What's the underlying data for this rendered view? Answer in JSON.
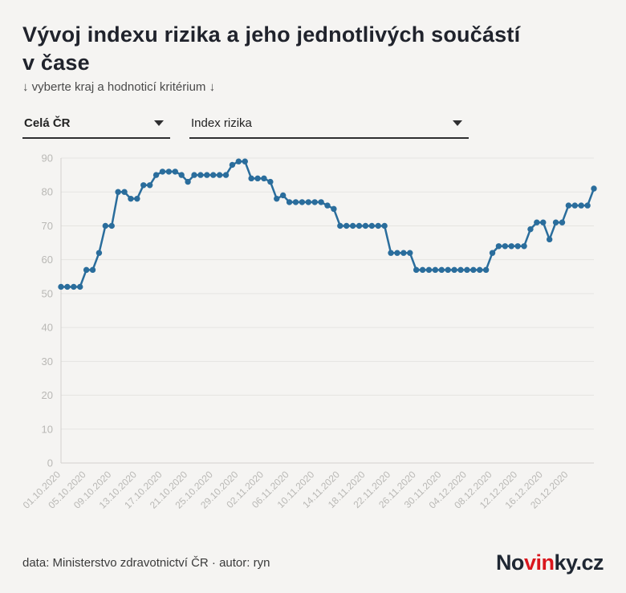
{
  "page": {
    "title_line1": "Vývoj indexu rizika a jeho jednotlivých součástí",
    "title_line2": "v čase",
    "subtitle": "↓ vyberte kraj a hodnoticí kritérium ↓"
  },
  "filters": {
    "region": {
      "value": "Celá ČR"
    },
    "criterion": {
      "value": "Index rizika"
    }
  },
  "chart_data": {
    "type": "line",
    "series_name": "Index rizika",
    "x": [
      "01.10.2020",
      "02.10.2020",
      "03.10.2020",
      "04.10.2020",
      "05.10.2020",
      "06.10.2020",
      "07.10.2020",
      "08.10.2020",
      "09.10.2020",
      "10.10.2020",
      "11.10.2020",
      "12.10.2020",
      "13.10.2020",
      "14.10.2020",
      "15.10.2020",
      "16.10.2020",
      "17.10.2020",
      "18.10.2020",
      "19.10.2020",
      "20.10.2020",
      "21.10.2020",
      "22.10.2020",
      "23.10.2020",
      "24.10.2020",
      "25.10.2020",
      "26.10.2020",
      "27.10.2020",
      "28.10.2020",
      "29.10.2020",
      "30.10.2020",
      "31.10.2020",
      "01.11.2020",
      "02.11.2020",
      "03.11.2020",
      "04.11.2020",
      "05.11.2020",
      "06.11.2020",
      "07.11.2020",
      "08.11.2020",
      "09.11.2020",
      "10.11.2020",
      "11.11.2020",
      "12.11.2020",
      "13.11.2020",
      "14.11.2020",
      "15.11.2020",
      "16.11.2020",
      "17.11.2020",
      "18.11.2020",
      "19.11.2020",
      "20.11.2020",
      "21.11.2020",
      "22.11.2020",
      "23.11.2020",
      "24.11.2020",
      "25.11.2020",
      "26.11.2020",
      "27.11.2020",
      "28.11.2020",
      "29.11.2020",
      "30.11.2020",
      "01.12.2020",
      "02.12.2020",
      "03.12.2020",
      "04.12.2020",
      "05.12.2020",
      "06.12.2020",
      "07.12.2020",
      "08.12.2020",
      "09.12.2020",
      "10.12.2020",
      "11.12.2020",
      "12.12.2020",
      "13.12.2020",
      "14.12.2020",
      "15.12.2020",
      "16.12.2020",
      "17.12.2020",
      "18.12.2020",
      "19.12.2020",
      "20.12.2020",
      "21.12.2020",
      "22.12.2020",
      "23.12.2020",
      "24.12.2020"
    ],
    "values": [
      52,
      52,
      52,
      52,
      57,
      57,
      62,
      70,
      70,
      80,
      80,
      78,
      78,
      82,
      82,
      85,
      86,
      86,
      86,
      85,
      83,
      85,
      85,
      85,
      85,
      85,
      85,
      88,
      89,
      89,
      84,
      84,
      84,
      83,
      78,
      79,
      77,
      77,
      77,
      77,
      77,
      77,
      76,
      75,
      70,
      70,
      70,
      70,
      70,
      70,
      70,
      70,
      62,
      62,
      62,
      62,
      57,
      57,
      57,
      57,
      57,
      57,
      57,
      57,
      57,
      57,
      57,
      57,
      62,
      64,
      64,
      64,
      64,
      64,
      69,
      71,
      71,
      66,
      71,
      71,
      76,
      76,
      76,
      76,
      81
    ],
    "x_tick_labels": [
      "01.10.2020",
      "05.10.2020",
      "09.10.2020",
      "13.10.2020",
      "17.10.2020",
      "21.10.2020",
      "25.10.2020",
      "29.10.2020",
      "02.11.2020",
      "06.11.2020",
      "10.11.2020",
      "14.11.2020",
      "18.11.2020",
      "22.11.2020",
      "26.11.2020",
      "30.11.2020",
      "04.12.2020",
      "08.12.2020",
      "12.12.2020",
      "16.12.2020",
      "20.12.2020"
    ],
    "x_tick_every": 4,
    "y_ticks": [
      0,
      10,
      20,
      30,
      40,
      50,
      60,
      70,
      80,
      90
    ],
    "ylim": [
      0,
      90
    ],
    "grid": true,
    "legend": "none",
    "colors": {
      "line": "#2a6d9c",
      "point": "#2a6d9c",
      "grid": "#e5e4e1",
      "axis": "#d2d1ce",
      "tick_label": "#b9b8b5",
      "background": "#f5f4f2"
    }
  },
  "footer": {
    "credit": "data: Ministerstvo zdravotnictví ČR · autor: ryn",
    "logo": {
      "part1": "No",
      "part2": "vin",
      "part3": "ky.cz"
    }
  }
}
